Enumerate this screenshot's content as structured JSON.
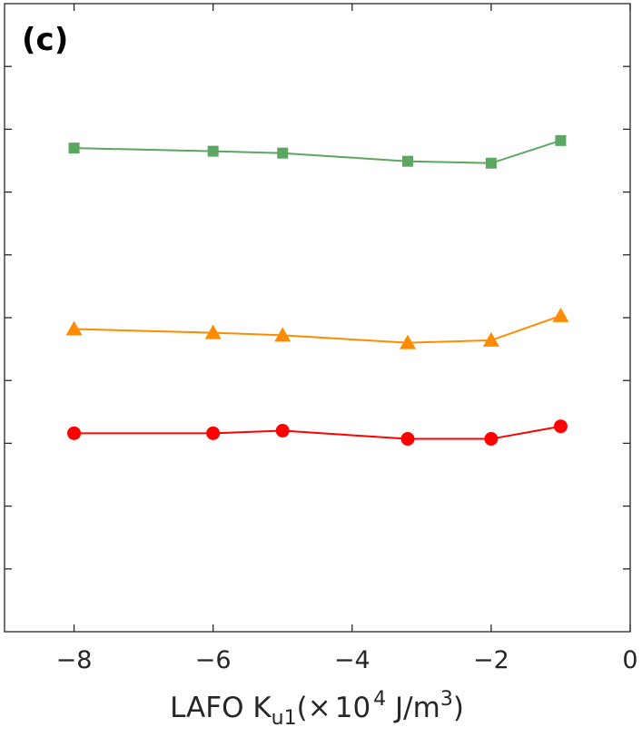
{
  "chart_data": {
    "type": "line",
    "panel_label": "(c)",
    "xlabel": {
      "prefix": "LAFO K",
      "subscript": "u1",
      "open": "(",
      "times": "×",
      "ten": "10",
      "exponent": "4",
      "units": " J/m",
      "units_exponent": "3",
      "close": ")"
    },
    "ylabel": "",
    "xlim": [
      -9,
      0
    ],
    "ylim": [
      0,
      10
    ],
    "x_ticks": [
      -8,
      -6,
      -4,
      -2,
      0
    ],
    "x_tick_labels": [
      "−8",
      "−6",
      "−4",
      "−2",
      "0"
    ],
    "y_ticks": [
      1,
      2,
      3,
      4,
      5,
      6,
      7,
      8,
      9
    ],
    "grid": false,
    "legend": false,
    "series": [
      {
        "marker": "square",
        "color": "#5ba660",
        "x": [
          -8,
          -6,
          -5,
          -3.2,
          -2,
          -1
        ],
        "y": [
          7.7,
          7.65,
          7.62,
          7.49,
          7.46,
          7.82
        ]
      },
      {
        "marker": "triangle",
        "color": "#ff8c00",
        "x": [
          -8,
          -6,
          -5,
          -3.2,
          -2,
          -1
        ],
        "y": [
          4.82,
          4.76,
          4.72,
          4.6,
          4.64,
          5.03
        ]
      },
      {
        "marker": "circle",
        "color": "#ff0000",
        "x": [
          -8,
          -6,
          -5,
          -3.2,
          -2,
          -1
        ],
        "y": [
          3.16,
          3.16,
          3.2,
          3.07,
          3.07,
          3.27
        ]
      }
    ]
  }
}
